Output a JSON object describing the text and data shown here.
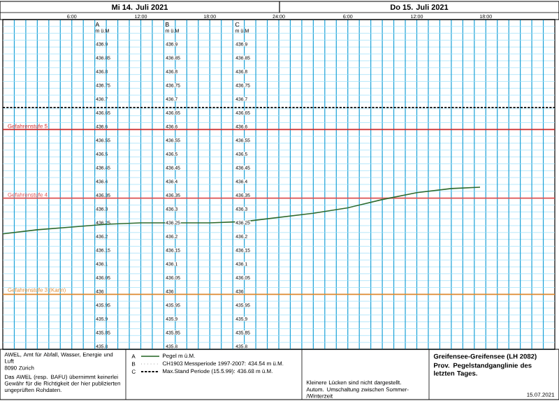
{
  "chart_data": {
    "type": "line",
    "title": "Greifensee-Greifensee (LH 2082)",
    "subtitle": "Prov. Pegelstandganglinie des letzten Tages.",
    "x": [
      "2021-07-14T00:00",
      "2021-07-14T03:00",
      "2021-07-14T06:00",
      "2021-07-14T09:00",
      "2021-07-14T12:00",
      "2021-07-14T15:00",
      "2021-07-14T18:00",
      "2021-07-14T21:00",
      "2021-07-15T00:00",
      "2021-07-15T03:00",
      "2021-07-15T06:00",
      "2021-07-15T09:00",
      "2021-07-15T12:00",
      "2021-07-15T15:00",
      "2021-07-15T17:30"
    ],
    "series": [
      {
        "name": "Pegel m ü.M.",
        "color": "#2e6b2e",
        "values": [
          436.22,
          436.235,
          436.245,
          436.255,
          436.26,
          436.26,
          436.26,
          436.265,
          436.28,
          436.295,
          436.315,
          436.345,
          436.37,
          436.385,
          436.39
        ]
      }
    ],
    "xlim": [
      "2021-07-14T00:00",
      "2021-07-16T00:00"
    ],
    "xticks": [
      {
        "value": "2021-07-14T01:00",
        "label": null
      },
      {
        "value": "2021-07-14T02:00",
        "label": null
      },
      {
        "value": "2021-07-14T03:00",
        "label": null
      },
      {
        "value": "2021-07-14T04:00",
        "label": null
      },
      {
        "value": "2021-07-14T05:00",
        "label": null
      },
      {
        "value": "2021-07-14T06:00",
        "label": "6:00"
      },
      {
        "value": "2021-07-14T07:00",
        "label": null
      },
      {
        "value": "2021-07-14T08:00",
        "label": null
      },
      {
        "value": "2021-07-14T09:00",
        "label": null
      },
      {
        "value": "2021-07-14T10:00",
        "label": null
      },
      {
        "value": "2021-07-14T11:00",
        "label": null
      },
      {
        "value": "2021-07-14T12:00",
        "label": "12:00"
      },
      {
        "value": "2021-07-14T13:00",
        "label": null
      },
      {
        "value": "2021-07-14T14:00",
        "label": null
      },
      {
        "value": "2021-07-14T15:00",
        "label": null
      },
      {
        "value": "2021-07-14T16:00",
        "label": null
      },
      {
        "value": "2021-07-14T17:00",
        "label": null
      },
      {
        "value": "2021-07-14T18:00",
        "label": "18:00"
      },
      {
        "value": "2021-07-14T19:00",
        "label": null
      },
      {
        "value": "2021-07-14T20:00",
        "label": null
      },
      {
        "value": "2021-07-14T21:00",
        "label": null
      },
      {
        "value": "2021-07-14T22:00",
        "label": null
      },
      {
        "value": "2021-07-14T23:00",
        "label": null
      },
      {
        "value": "2021-07-15T00:00",
        "label": "24:00"
      },
      {
        "value": "2021-07-15T01:00",
        "label": null
      },
      {
        "value": "2021-07-15T02:00",
        "label": null
      },
      {
        "value": "2021-07-15T03:00",
        "label": null
      },
      {
        "value": "2021-07-15T04:00",
        "label": null
      },
      {
        "value": "2021-07-15T05:00",
        "label": null
      },
      {
        "value": "2021-07-15T06:00",
        "label": "6:00"
      },
      {
        "value": "2021-07-15T07:00",
        "label": null
      },
      {
        "value": "2021-07-15T08:00",
        "label": null
      },
      {
        "value": "2021-07-15T09:00",
        "label": null
      },
      {
        "value": "2021-07-15T10:00",
        "label": null
      },
      {
        "value": "2021-07-15T11:00",
        "label": null
      },
      {
        "value": "2021-07-15T12:00",
        "label": "12:00"
      },
      {
        "value": "2021-07-15T13:00",
        "label": null
      },
      {
        "value": "2021-07-15T14:00",
        "label": null
      },
      {
        "value": "2021-07-15T15:00",
        "label": null
      },
      {
        "value": "2021-07-15T16:00",
        "label": null
      },
      {
        "value": "2021-07-15T17:00",
        "label": null
      },
      {
        "value": "2021-07-15T18:00",
        "label": "18:00"
      },
      {
        "value": "2021-07-15T19:00",
        "label": null
      },
      {
        "value": "2021-07-15T20:00",
        "label": null
      },
      {
        "value": "2021-07-15T21:00",
        "label": null
      },
      {
        "value": "2021-07-15T22:00",
        "label": null
      },
      {
        "value": "2021-07-15T23:00",
        "label": null
      }
    ],
    "ylim": [
      435.8,
      437.0
    ],
    "yticks": [
      435.8,
      {
        "value": 435.825,
        "label": null
      },
      435.85,
      {
        "value": 435.875,
        "label": null
      },
      435.9,
      {
        "value": 435.925,
        "label": null
      },
      435.95,
      {
        "value": 435.975,
        "label": null
      },
      436,
      {
        "value": 436.025,
        "label": null
      },
      436.05,
      {
        "value": 436.075,
        "label": null
      },
      436.1,
      {
        "value": 436.125,
        "label": null
      },
      436.15,
      {
        "value": 436.175,
        "label": null
      },
      436.2,
      {
        "value": 436.225,
        "label": null
      },
      436.25,
      {
        "value": 436.275,
        "label": null
      },
      436.3,
      {
        "value": 436.325,
        "label": null
      },
      436.35,
      {
        "value": 436.375,
        "label": null
      },
      436.4,
      {
        "value": 436.425,
        "label": null
      },
      436.45,
      {
        "value": 436.475,
        "label": null
      },
      436.5,
      {
        "value": 436.525,
        "label": null
      },
      436.55,
      {
        "value": 436.575,
        "label": null
      },
      436.6,
      {
        "value": 436.625,
        "label": null
      },
      436.65,
      {
        "value": 436.675,
        "label": null
      },
      436.7,
      {
        "value": 436.725,
        "label": null
      },
      436.75,
      {
        "value": 436.775,
        "label": null
      },
      436.8,
      {
        "value": 436.825,
        "label": null
      },
      436.85,
      {
        "value": 436.875,
        "label": null
      },
      436.9,
      {
        "value": 436.925,
        "label": null
      },
      {
        "value": 436.95,
        "label": null
      },
      {
        "value": 436.975,
        "label": null
      }
    ],
    "y2lim": [
      435.8,
      437.0
    ],
    "y2ticks": [
      435.8,
      435.85,
      435.9,
      435.95,
      436,
      436.05,
      436.1,
      436.15,
      436.2,
      436.25,
      436.3,
      436.35,
      436.4,
      436.45,
      436.5,
      436.55,
      436.6,
      436.65,
      436.7,
      436.75,
      436.8,
      436.85,
      436.9
    ],
    "y3lim": [
      435.8,
      437.0
    ],
    "y3ticks": [
      435.8,
      435.85,
      435.9,
      435.95,
      436,
      436.05,
      436.1,
      436.15,
      436.2,
      436.25,
      436.3,
      436.35,
      436.4,
      436.45,
      436.5,
      436.55,
      436.6,
      436.65,
      436.7,
      436.75,
      436.8,
      436.85,
      436.9
    ],
    "ref_lines": [
      {
        "axis": "y",
        "value": 436.68,
        "label": "Max.Stand Periode (15.5.99): 436.68 m ü.M.",
        "color": "#000000",
        "line_style": "dashed"
      },
      {
        "axis": "y",
        "value": 436.6,
        "label": "Gefahrenstufe 5",
        "color": "#d02828",
        "line_style": "solid"
      },
      {
        "axis": "y",
        "value": 436.35,
        "label": "Gefahrenstufe 4",
        "color": "#e05050",
        "line_style": "solid"
      },
      {
        "axis": "y",
        "value": 436.0,
        "label": "Gefahrenstufe 3 (Kann)",
        "color": "#e08a30",
        "line_style": "solid"
      }
    ],
    "grid": true,
    "legend": "bottom",
    "annotations": [
      "Mi 14. Juli 2021",
      "Do 15. Juli 2021",
      "A",
      "m ü.M",
      "B",
      "m ü.M",
      "C",
      "m ü.M",
      "AWEL, Amt für Abfall, Wasser, Energie und Luft",
      "8090 Zürich",
      "Das AWEL (resp. BAFU) übernimmt keinerlei Gewähr für die Richtigkeit der hier publizierten ungeprüften Rohdaten.",
      "A",
      "B",
      "CH1903 Messperiode 1997-2007: 434.54 m ü.M.",
      "C",
      "Kleinere Lücken sind nicht dargestellt.",
      "Autom. Umschaltung zwischen Sommer-/Winterzeit",
      "15.07.2021"
    ]
  }
}
